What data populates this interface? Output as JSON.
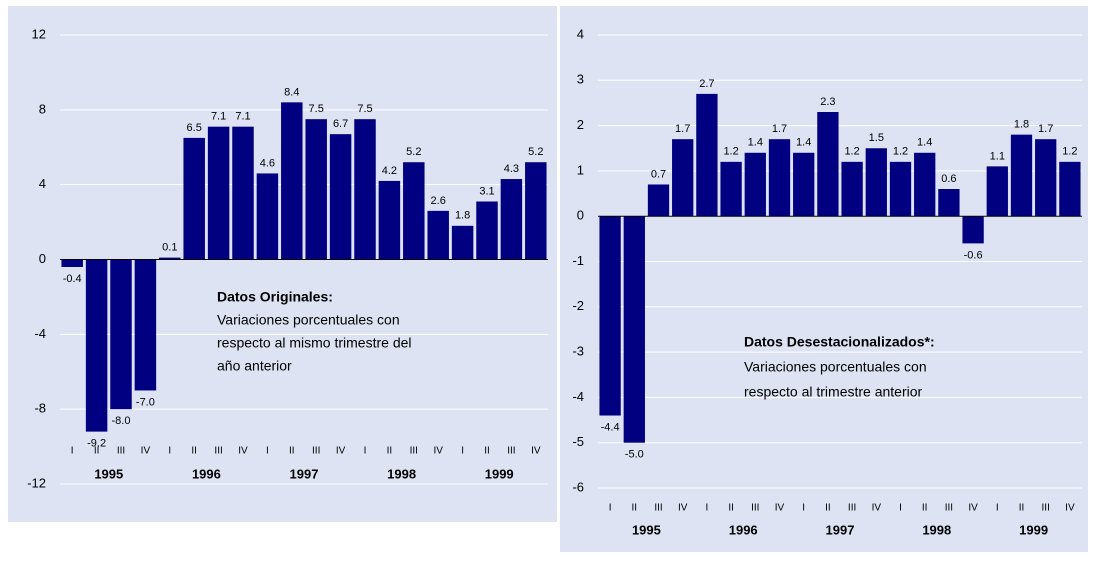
{
  "chart_data": [
    {
      "type": "bar",
      "color": "#000080",
      "categories": [
        "I",
        "II",
        "III",
        "IV",
        "I",
        "II",
        "III",
        "IV",
        "I",
        "II",
        "III",
        "IV",
        "I",
        "II",
        "III",
        "IV",
        "I",
        "II",
        "III",
        "IV"
      ],
      "groups": [
        "1995",
        "1996",
        "1997",
        "1998",
        "1999"
      ],
      "values": [
        -0.4,
        -9.2,
        -8.0,
        -7.0,
        0.1,
        6.5,
        7.1,
        7.1,
        4.6,
        8.4,
        7.5,
        6.7,
        7.5,
        4.2,
        5.2,
        2.6,
        1.8,
        3.1,
        4.3,
        5.2
      ],
      "value_labels": [
        "-0.4",
        "-9.2",
        "-8.0",
        "-7.0",
        "0.1",
        "6.5",
        "7.1",
        "7.1",
        "4.6",
        "8.4",
        "7.5",
        "6.7",
        "7.5",
        "4.2",
        "5.2",
        "2.6",
        "1.8",
        "3.1",
        "4.3",
        "5.2"
      ],
      "ylim": [
        -12,
        12
      ],
      "yticks": [
        -12,
        -8,
        -4,
        0,
        4,
        8,
        12
      ],
      "grid": true,
      "annotation": {
        "title": "Datos Originales:",
        "lines": [
          "Variaciones porcentuales con",
          "respecto al mismo trimestre del",
          "año anterior"
        ]
      }
    },
    {
      "type": "bar",
      "color": "#000080",
      "categories": [
        "I",
        "II",
        "III",
        "IV",
        "I",
        "II",
        "III",
        "IV",
        "I",
        "II",
        "III",
        "IV",
        "I",
        "II",
        "III",
        "IV",
        "I",
        "II",
        "III",
        "IV"
      ],
      "groups": [
        "1995",
        "1996",
        "1997",
        "1998",
        "1999"
      ],
      "values": [
        -4.4,
        -5.0,
        0.7,
        1.7,
        2.7,
        1.2,
        1.4,
        1.7,
        1.4,
        2.3,
        1.2,
        1.5,
        1.2,
        1.4,
        0.6,
        -0.6,
        1.1,
        1.8,
        1.7,
        1.2
      ],
      "value_labels": [
        "-4.4",
        "-5.0",
        "0.7",
        "1.7",
        "2.7",
        "1.2",
        "1.4",
        "1.7",
        "1.4",
        "2.3",
        "1.2",
        "1.5",
        "1.2",
        "1.4",
        "0.6",
        "-0.6",
        "1.1",
        "1.8",
        "1.7",
        "1.2"
      ],
      "ylim": [
        -6,
        4
      ],
      "yticks": [
        -6,
        -5,
        -4,
        -3,
        -2,
        -1,
        0,
        1,
        2,
        3,
        4
      ],
      "grid": true,
      "annotation": {
        "title": "Datos Desestacionalizados*:",
        "lines": [
          "Variaciones porcentuales con",
          "respecto al trimestre anterior"
        ]
      }
    }
  ]
}
